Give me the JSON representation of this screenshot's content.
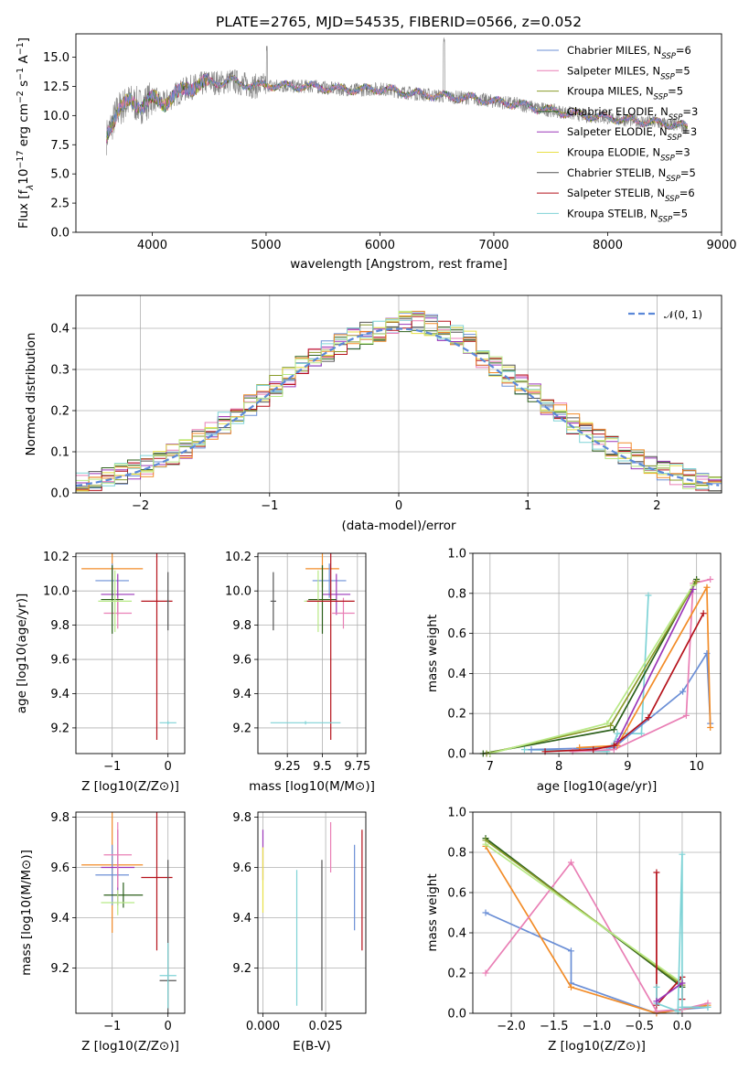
{
  "figure": {
    "title": "PLATE=2765, MJD=54535, FIBERID=0566, z=0.052"
  },
  "chart_data": [
    {
      "id": "spectrum",
      "type": "line",
      "title": "PLATE=2765, MJD=54535, FIBERID=0566, z=0.052",
      "xlabel": "wavelength [Angstrom, rest frame]",
      "ylabel": "Flux [f_λ 10^-17 erg cm^-2 s^-1 A^-1]",
      "xlim": [
        3330,
        9000
      ],
      "ylim": [
        0,
        17
      ],
      "xticks": [
        4000,
        5000,
        6000,
        7000,
        8000,
        9000
      ],
      "yticks": [
        0.0,
        2.5,
        5.0,
        7.5,
        10.0,
        12.5,
        15.0
      ],
      "grid": false,
      "legend_position": "top-right",
      "observed_spectrum_approx": {
        "x": [
          3600,
          3700,
          3800,
          3900,
          4000,
          4100,
          4200,
          4300,
          4400,
          4500,
          4600,
          4700,
          4800,
          4900,
          5000,
          5200,
          5400,
          5600,
          5800,
          6000,
          6200,
          6400,
          6600,
          6800,
          7000,
          7200,
          7400,
          7600,
          7800,
          8000,
          8200,
          8400,
          8600,
          8700
        ],
        "y": [
          8.2,
          10.5,
          11.2,
          10.8,
          11.5,
          11.0,
          11.8,
          12.3,
          12.6,
          12.9,
          12.8,
          13.0,
          12.7,
          12.5,
          12.6,
          12.5,
          12.5,
          12.3,
          12.2,
          12.3,
          12.0,
          11.8,
          11.6,
          11.5,
          11.2,
          11.0,
          10.6,
          10.3,
          10.0,
          9.8,
          9.6,
          9.4,
          9.2,
          9.0
        ]
      },
      "series": [
        {
          "name": "Chabrier MILES, N_SSP=6",
          "color": "#6b8fd6"
        },
        {
          "name": "Salpeter MILES, N_SSP=5",
          "color": "#e97fb5"
        },
        {
          "name": "Kroupa MILES, N_SSP=5",
          "color": "#8a9b2a"
        },
        {
          "name": "Chabrier ELODIE, N_SSP=3",
          "color": "#2b5f1a"
        },
        {
          "name": "Salpeter ELODIE, N_SSP=3",
          "color": "#9b36b8"
        },
        {
          "name": "Kroupa ELODIE, N_SSP=3",
          "color": "#e8e046"
        },
        {
          "name": "Chabrier STELIB, N_SSP=5",
          "color": "#555555"
        },
        {
          "name": "Salpeter STELIB, N_SSP=6",
          "color": "#b5121b"
        },
        {
          "name": "Kroupa STELIB, N_SSP=5",
          "color": "#7fd3d6"
        }
      ]
    },
    {
      "id": "residual-hist",
      "type": "bar",
      "xlabel": "(data-model)/error",
      "ylabel": "Normed distribution",
      "xlim": [
        -2.5,
        2.5
      ],
      "ylim": [
        0,
        0.48
      ],
      "xticks": [
        -2,
        -1,
        0,
        1,
        2
      ],
      "yticks": [
        0.0,
        0.1,
        0.2,
        0.3,
        0.4
      ],
      "grid": true,
      "legend_position": "top-right",
      "reference_curve": {
        "name": "𝒩(0, 1)",
        "color": "#5b88d8",
        "style": "dashed"
      },
      "bin_width": 0.1,
      "series_colors": [
        "#6b8fd6",
        "#e97fb5",
        "#8a9b2a",
        "#2b5f1a",
        "#9b36b8",
        "#e8e046",
        "#555555",
        "#b5121b",
        "#7fd3d6",
        "#f28c28",
        "#b8e986"
      ]
    },
    {
      "id": "age-vs-Z",
      "type": "scatter",
      "xlabel": "Z [log10(Z/Z⊙)]",
      "ylabel": "age  [log10(age/yr)]",
      "xlim": [
        -1.65,
        0.3
      ],
      "ylim": [
        9.05,
        10.22
      ],
      "xticks": [
        -1,
        0
      ],
      "yticks": [
        9.2,
        9.4,
        9.6,
        9.8,
        10.0,
        10.2
      ],
      "grid": true,
      "points": [
        {
          "x": -1.0,
          "xerr": 0.55,
          "y": 10.13,
          "yerr": 0.11,
          "color": "#f28c28"
        },
        {
          "x": -1.0,
          "xerr": 0.3,
          "y": 10.06,
          "yerr": 0.1,
          "color": "#6b8fd6"
        },
        {
          "x": -0.9,
          "xerr": 0.3,
          "y": 9.98,
          "yerr": 0.12,
          "color": "#9b36b8"
        },
        {
          "x": -0.9,
          "xerr": 0.25,
          "y": 9.87,
          "yerr": 0.09,
          "color": "#e97fb5"
        },
        {
          "x": -1.0,
          "xerr": 0.2,
          "y": 9.95,
          "yerr": 0.2,
          "color": "#2b5f1a"
        },
        {
          "x": -0.95,
          "xerr": 0.3,
          "y": 9.94,
          "yerr": 0.18,
          "color": "#b8e986"
        },
        {
          "x": -0.2,
          "xerr": 0.28,
          "y": 9.94,
          "yerr": 0.81,
          "color": "#b5121b"
        },
        {
          "x": 0.0,
          "xerr": 0.02,
          "y": 9.94,
          "yerr": 0.17,
          "color": "#555555"
        },
        {
          "x": 0.0,
          "xerr": 0.15,
          "y": 9.23,
          "yerr": 0.01,
          "color": "#7fd3d6"
        }
      ]
    },
    {
      "id": "age-vs-mass",
      "type": "scatter",
      "xlabel": "mass [log10(M/M⊙)]",
      "ylabel": "",
      "xlim": [
        9.04,
        9.81
      ],
      "ylim": [
        9.05,
        10.22
      ],
      "xticks": [
        9.25,
        9.5,
        9.75
      ],
      "yticks": [
        9.2,
        9.4,
        9.6,
        9.8,
        10.0,
        10.2
      ],
      "grid": true,
      "points": [
        {
          "x": 9.5,
          "xerr": 0.12,
          "y": 10.13,
          "yerr": 0.11,
          "color": "#f28c28"
        },
        {
          "x": 9.55,
          "xerr": 0.12,
          "y": 10.06,
          "yerr": 0.1,
          "color": "#6b8fd6"
        },
        {
          "x": 9.6,
          "xerr": 0.1,
          "y": 9.98,
          "yerr": 0.12,
          "color": "#9b36b8"
        },
        {
          "x": 9.65,
          "xerr": 0.08,
          "y": 9.87,
          "yerr": 0.09,
          "color": "#e97fb5"
        },
        {
          "x": 9.5,
          "xerr": 0.1,
          "y": 9.95,
          "yerr": 0.2,
          "color": "#2b5f1a"
        },
        {
          "x": 9.47,
          "xerr": 0.1,
          "y": 9.94,
          "yerr": 0.18,
          "color": "#b8e986"
        },
        {
          "x": 9.56,
          "xerr": 0.17,
          "y": 9.94,
          "yerr": 0.81,
          "color": "#b5121b"
        },
        {
          "x": 9.15,
          "xerr": 0.02,
          "y": 9.94,
          "yerr": 0.17,
          "color": "#555555"
        },
        {
          "x": 9.38,
          "xerr": 0.25,
          "y": 9.23,
          "yerr": 0.01,
          "color": "#7fd3d6"
        }
      ]
    },
    {
      "id": "mass-weight-vs-age",
      "type": "line",
      "xlabel": "age  [log10(age/yr)]",
      "ylabel": "mass weight",
      "xlim": [
        6.75,
        10.35
      ],
      "ylim": [
        0,
        1.0
      ],
      "xticks": [
        7,
        8,
        9,
        10
      ],
      "yticks": [
        0.0,
        0.2,
        0.4,
        0.6,
        0.8,
        1.0
      ],
      "grid": true,
      "series": [
        {
          "color": "#7fd3d6",
          "x": [
            7.5,
            8.7,
            8.8,
            8.85,
            9.2,
            9.3
          ],
          "y": [
            0.02,
            0.01,
            0.05,
            0.1,
            0.1,
            0.79
          ]
        },
        {
          "color": "#6b8fd6",
          "x": [
            7.6,
            8.8,
            9.8,
            10.15,
            10.2
          ],
          "y": [
            0.02,
            0.03,
            0.31,
            0.5,
            0.15
          ]
        },
        {
          "color": "#e97fb5",
          "x": [
            8.2,
            8.8,
            9.85,
            9.95,
            10.2
          ],
          "y": [
            0.01,
            0.02,
            0.19,
            0.85,
            0.87
          ]
        },
        {
          "color": "#f28c28",
          "x": [
            8.3,
            8.85,
            10.15,
            10.2
          ],
          "y": [
            0.03,
            0.04,
            0.83,
            0.13
          ]
        },
        {
          "color": "#b5121b",
          "x": [
            7.8,
            8.5,
            8.8,
            9.3,
            10.1
          ],
          "y": [
            0.01,
            0.02,
            0.04,
            0.18,
            0.7
          ]
        },
        {
          "color": "#2b5f1a",
          "x": [
            6.9,
            8.8,
            10.0
          ],
          "y": [
            0.0,
            0.12,
            0.87
          ]
        },
        {
          "color": "#8a9b2a",
          "x": [
            6.95,
            8.75,
            10.0
          ],
          "y": [
            0.0,
            0.14,
            0.86
          ]
        },
        {
          "color": "#b8e986",
          "x": [
            7.0,
            8.7,
            9.95
          ],
          "y": [
            0.0,
            0.15,
            0.84
          ]
        },
        {
          "color": "#9b36b8",
          "x": [
            8.85,
            9.95
          ],
          "y": [
            0.06,
            0.82
          ]
        }
      ]
    },
    {
      "id": "mass-vs-Z",
      "type": "scatter",
      "xlabel": "Z [log10(Z/Z⊙)]",
      "ylabel": "mass [log10(M/M⊙)]",
      "xlim": [
        -1.65,
        0.3
      ],
      "ylim": [
        9.02,
        9.82
      ],
      "xticks": [
        -1,
        0
      ],
      "yticks": [
        9.2,
        9.4,
        9.6,
        9.8
      ],
      "grid": true,
      "points": [
        {
          "x": -1.0,
          "xerr": 0.55,
          "y": 9.61,
          "yerr": 0.27,
          "color": "#f28c28"
        },
        {
          "x": -1.0,
          "xerr": 0.3,
          "y": 9.57,
          "yerr": 0.12,
          "color": "#6b8fd6"
        },
        {
          "x": -0.9,
          "xerr": 0.3,
          "y": 9.6,
          "yerr": 0.15,
          "color": "#9b36b8"
        },
        {
          "x": -0.9,
          "xerr": 0.25,
          "y": 9.65,
          "yerr": 0.13,
          "color": "#e97fb5"
        },
        {
          "x": -0.8,
          "xerr": 0.35,
          "y": 9.49,
          "yerr": 0.05,
          "color": "#2b5f1a"
        },
        {
          "x": -0.9,
          "xerr": 0.3,
          "y": 9.46,
          "yerr": 0.05,
          "color": "#b8e986"
        },
        {
          "x": -0.2,
          "xerr": 0.28,
          "y": 9.56,
          "yerr": 0.29,
          "color": "#b5121b"
        },
        {
          "x": 0.0,
          "xerr": 0.15,
          "y": 9.15,
          "yerr": 0.48,
          "color": "#555555"
        },
        {
          "x": 0.0,
          "xerr": 0.15,
          "y": 9.17,
          "yerr": 0.13,
          "color": "#7fd3d6"
        }
      ]
    },
    {
      "id": "mass-vs-ebv",
      "type": "scatter",
      "xlabel": "E(B-V)",
      "ylabel": "",
      "xlim": [
        -0.002,
        0.041
      ],
      "ylim": [
        9.02,
        9.82
      ],
      "xticks": [
        0.0,
        0.025
      ],
      "xticklabels": [
        "0.000",
        "0.025"
      ],
      "yticks": [
        9.2,
        9.4,
        9.6,
        9.8
      ],
      "grid": true,
      "points": [
        {
          "x": 0.0,
          "y": 9.65,
          "yerr": 0.1,
          "color": "#9b36b8"
        },
        {
          "x": 0.0,
          "y": 9.55,
          "yerr": 0.13,
          "color": "#e8e046"
        },
        {
          "x": 0.0135,
          "y": 9.32,
          "yerr": 0.27,
          "color": "#7fd3d6"
        },
        {
          "x": 0.0235,
          "y": 9.33,
          "yerr": 0.3,
          "color": "#555555"
        },
        {
          "x": 0.027,
          "y": 9.68,
          "yerr": 0.1,
          "color": "#e97fb5"
        },
        {
          "x": 0.0365,
          "y": 9.52,
          "yerr": 0.17,
          "color": "#6b8fd6"
        },
        {
          "x": 0.0395,
          "y": 9.51,
          "yerr": 0.24,
          "color": "#b5121b"
        }
      ]
    },
    {
      "id": "mass-weight-vs-Z",
      "type": "line",
      "xlabel": "Z [log10(Z/Z⊙)]",
      "ylabel": "mass weight",
      "xlim": [
        -2.45,
        0.45
      ],
      "ylim": [
        0,
        1.0
      ],
      "xticks": [
        -2.0,
        -1.5,
        -1.0,
        -0.5,
        0.0
      ],
      "xticklabels": [
        "−2.0",
        "−1.5",
        "−1.0",
        "−0.5",
        "0.0"
      ],
      "yticks": [
        0.0,
        0.2,
        0.4,
        0.6,
        0.8,
        1.0
      ],
      "grid": true,
      "series": [
        {
          "color": "#6b8fd6",
          "x": [
            -2.3,
            -1.3,
            -1.3,
            -0.3,
            0.0,
            0.3
          ],
          "y": [
            0.5,
            0.31,
            0.15,
            0.0,
            0.02,
            0.03
          ]
        },
        {
          "color": "#f28c28",
          "x": [
            -2.3,
            -1.3,
            -0.3,
            0.0,
            0.3
          ],
          "y": [
            0.83,
            0.13,
            0.0,
            0.02,
            0.04
          ]
        },
        {
          "color": "#e97fb5",
          "x": [
            -2.3,
            -1.3,
            -0.3,
            0.0,
            0.3
          ],
          "y": [
            0.2,
            0.75,
            0.01,
            0.02,
            0.05
          ]
        },
        {
          "color": "#2b5f1a",
          "x": [
            -2.3,
            0.0
          ],
          "y": [
            0.87,
            0.13
          ]
        },
        {
          "color": "#8a9b2a",
          "x": [
            -2.3,
            0.0
          ],
          "y": [
            0.86,
            0.14
          ]
        },
        {
          "color": "#b8e986",
          "x": [
            -2.3,
            0.0
          ],
          "y": [
            0.84,
            0.15
          ]
        },
        {
          "color": "#b5121b",
          "x": [
            -0.3,
            -0.3,
            0.0,
            0.0
          ],
          "y": [
            0.7,
            0.04,
            0.18,
            0.07
          ]
        },
        {
          "color": "#7fd3d6",
          "x": [
            -0.3,
            -0.3,
            -0.05,
            0.0,
            0.0,
            0.3
          ],
          "y": [
            0.13,
            0.05,
            0.01,
            0.79,
            0.03,
            0.03
          ]
        },
        {
          "color": "#9b36b8",
          "x": [
            -0.3,
            0.0
          ],
          "y": [
            0.06,
            0.15
          ]
        }
      ]
    }
  ]
}
